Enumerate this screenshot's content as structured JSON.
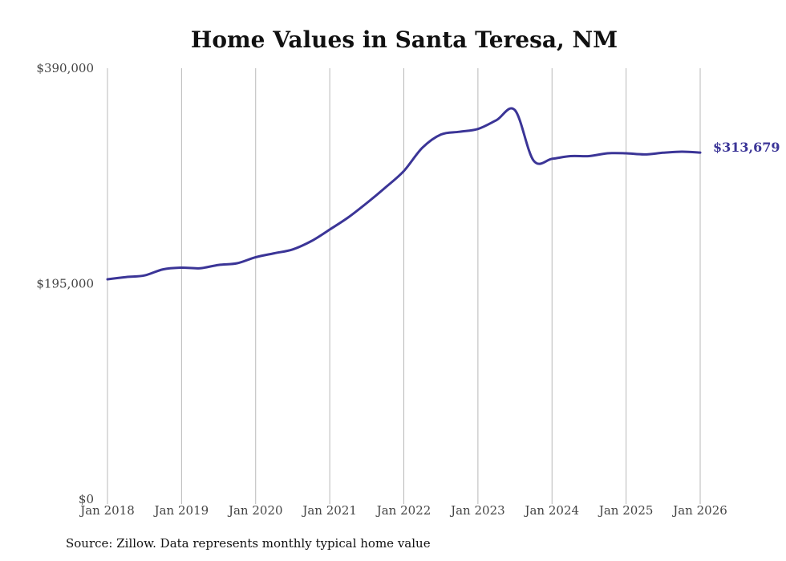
{
  "colors": {
    "line": "#3b3597",
    "grid": "#b9b9b9",
    "text": "#444444"
  },
  "source_note": "Source: Zillow. Data represents monthly typical home value",
  "chart_data": {
    "type": "line",
    "title": "Home Values in Santa Teresa, NM",
    "xlabel": "",
    "ylabel": "",
    "ylim": [
      0,
      390000
    ],
    "y_ticks": [
      0,
      195000,
      390000
    ],
    "y_tick_labels": [
      "$0",
      "$195,000",
      "$390,000"
    ],
    "x_ticks": [
      2018,
      2019,
      2020,
      2021,
      2022,
      2023,
      2024,
      2025,
      2026
    ],
    "x_tick_labels": [
      "Jan 2018",
      "Jan 2019",
      "Jan 2020",
      "Jan 2021",
      "Jan 2022",
      "Jan 2023",
      "Jan 2024",
      "Jan 2025",
      "Jan 2026"
    ],
    "grid": "vertical",
    "end_label": "$313,679",
    "series": [
      {
        "name": "Typical home value",
        "x": [
          2018.0,
          2018.25,
          2018.5,
          2018.75,
          2019.0,
          2019.25,
          2019.5,
          2019.75,
          2020.0,
          2020.25,
          2020.5,
          2020.75,
          2021.0,
          2021.25,
          2021.5,
          2021.75,
          2022.0,
          2022.25,
          2022.5,
          2022.75,
          2023.0,
          2023.25,
          2023.5,
          2023.75,
          2024.0,
          2024.25,
          2024.5,
          2024.75,
          2025.0,
          2025.25,
          2025.5,
          2025.75,
          2026.0
        ],
        "values": [
          199000,
          201000,
          202500,
          208000,
          209500,
          209000,
          212000,
          213500,
          219000,
          222500,
          226000,
          233500,
          244000,
          255000,
          268000,
          282000,
          297000,
          318000,
          330000,
          332500,
          335000,
          343000,
          352000,
          306500,
          308000,
          310500,
          310500,
          313000,
          313000,
          312000,
          313500,
          314500,
          313679
        ]
      }
    ]
  }
}
